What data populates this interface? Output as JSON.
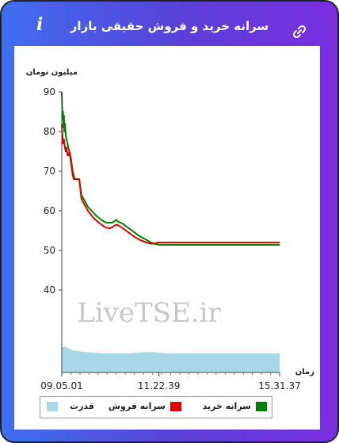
{
  "header": {
    "title": "سرانه خرید و فروش حقیقی بازار",
    "info_icon": "i"
  },
  "chart_data": {
    "type": "line",
    "ylabel": "میلیون تومان",
    "xlabel": "زمان",
    "yticks": [
      40,
      50,
      60,
      70,
      80,
      90
    ],
    "ylim": [
      40,
      90
    ],
    "xticks": [
      "09.05.01",
      "11.22.39",
      "15.31.37"
    ],
    "grid": false,
    "legend_position": "bottom",
    "watermark": "LiveTSE.ir",
    "series": [
      {
        "name": "سرانه خرید",
        "color": "#008000",
        "x": [
          0,
          0.2,
          0.4,
          0.6,
          0.8,
          1,
          1.2,
          1.5,
          1.8,
          2.2,
          2.6,
          3,
          3.5,
          4,
          4.5,
          5,
          5.5,
          6,
          7,
          8,
          9,
          10,
          11,
          12,
          13,
          14,
          15,
          16,
          17,
          18,
          19,
          20,
          21,
          22,
          23,
          24,
          25,
          26,
          27,
          28,
          29,
          30,
          31,
          32,
          33,
          34,
          35,
          36,
          37,
          38,
          39,
          40,
          41,
          42,
          43,
          44,
          45,
          50,
          55,
          60,
          65,
          70,
          75,
          80,
          85,
          90,
          95,
          100
        ],
        "values": [
          90,
          86,
          83,
          85,
          81,
          84,
          80,
          82,
          79,
          78,
          77,
          76,
          75,
          74,
          72,
          70,
          69,
          68,
          68,
          68,
          64,
          63,
          62,
          61,
          60.4,
          59.8,
          59.2,
          58.7,
          58.2,
          57.8,
          57.4,
          57.1,
          57.0,
          57.0,
          57.0,
          57.3,
          57.7,
          57.2,
          57.0,
          56.7,
          56.3,
          55.9,
          55.5,
          55.1,
          54.7,
          54.3,
          53.9,
          53.5,
          53.2,
          52.9,
          52.6,
          52.3,
          52.0,
          51.8,
          51.6,
          51.5,
          51.4,
          51.4,
          51.4,
          51.4,
          51.4,
          51.4,
          51.4,
          51.4,
          51.4,
          51.4,
          51.4,
          51.4
        ]
      },
      {
        "name": "سرانه فروش",
        "color": "#e00000",
        "x": [
          0,
          0.3,
          0.6,
          1,
          1.4,
          1.8,
          2.2,
          2.6,
          3,
          3.5,
          4,
          4.5,
          5,
          5.5,
          6,
          7,
          8,
          9,
          10,
          11,
          12,
          13,
          14,
          15,
          16,
          17,
          18,
          19,
          20,
          21,
          22,
          23,
          24,
          25,
          26,
          27,
          28,
          29,
          30,
          31,
          32,
          33,
          34,
          35,
          36,
          37,
          38,
          39,
          40,
          41,
          42,
          43,
          44,
          45,
          50,
          55,
          60,
          65,
          70,
          75,
          80,
          85,
          90,
          95,
          100
        ],
        "values": [
          82,
          79,
          77,
          78,
          76,
          75,
          76,
          74,
          74,
          75,
          73,
          71,
          69,
          68,
          68,
          68,
          68,
          63,
          62,
          61,
          60,
          59.3,
          58.6,
          58.0,
          57.5,
          57.0,
          56.6,
          56.2,
          55.8,
          55.7,
          55.6,
          55.8,
          56.2,
          56.5,
          56.3,
          56.0,
          55.6,
          55.2,
          54.8,
          54.4,
          54.0,
          53.6,
          53.2,
          52.9,
          52.6,
          52.4,
          52.2,
          52.0,
          51.8,
          51.7,
          51.7,
          51.8,
          52.0,
          52.0,
          52.0,
          52.0,
          52.0,
          52.0,
          52.0,
          52.0,
          52.0,
          52.0,
          52.0,
          52.0,
          52.0
        ]
      },
      {
        "name": "قدرت",
        "color": "#a8d8e8",
        "type": "area",
        "x": [
          0,
          2,
          5,
          10,
          20,
          30,
          40,
          50,
          60,
          70,
          80,
          90,
          100
        ],
        "values": [
          1.6,
          1.6,
          1.4,
          1.3,
          1.2,
          1.2,
          1.3,
          1.2,
          1.2,
          1.2,
          1.2,
          1.2,
          1.2
        ]
      }
    ]
  },
  "legend": {
    "items": [
      {
        "label": "سرانه خرید",
        "color": "#008000"
      },
      {
        "label": "سرانه فروش",
        "color": "#e00000"
      },
      {
        "label": "قدرت",
        "color": "#a8d8e8"
      }
    ]
  }
}
